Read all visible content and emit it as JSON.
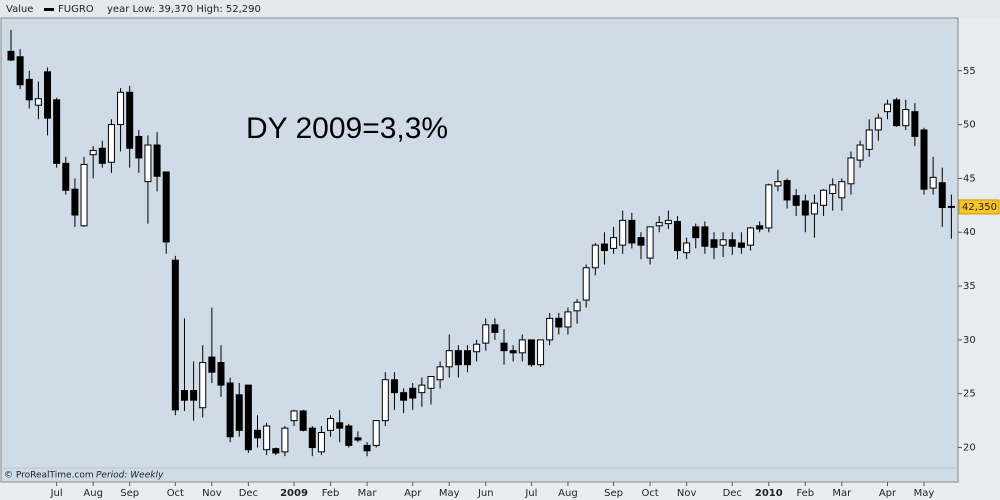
{
  "chart_data": {
    "type": "candlestick",
    "header_label": "Value",
    "stats": "year Low: 39,370 High: 52,290",
    "annotation": "DY 2009=3,3%",
    "footer_source": "© ProRealTime.com",
    "footer_period": "Period: Weekly",
    "series": [
      {
        "name": "FUGRO",
        "color": "#000000",
        "up_color": "#ffffff",
        "down_color": "#000000",
        "open": [
          56.8,
          56.3,
          54.2,
          51.8,
          54.9,
          52.3,
          46.4,
          44,
          40.6,
          47.2,
          47.8,
          46.5,
          50,
          53,
          48.9,
          44.7,
          48.1,
          45.6,
          37.4,
          25.3,
          25.3,
          23.7,
          28.4,
          27.9,
          26,
          24.9,
          25.8,
          21.6,
          19.8,
          19.9,
          19.6,
          22.5,
          23.4,
          21.8,
          19.6,
          21.6,
          22.3,
          22,
          20.9,
          20.2,
          20.2,
          22.5,
          26.3,
          25.1,
          25.5,
          25.1,
          25.5,
          26.3,
          27.5,
          29,
          29,
          28.9,
          29.7,
          31.4,
          29.7,
          29,
          28.8,
          30,
          27.7,
          30,
          32,
          31.2,
          32.7,
          33.7,
          36.7,
          38.9,
          38.5,
          38.8,
          41.1,
          39.5,
          37.6,
          40.6,
          40.8,
          41,
          38.1,
          40.5,
          40.5,
          39.3,
          38.8,
          39.3,
          39,
          38.8,
          40.6,
          40.4,
          44.3,
          44.8,
          43.4,
          42.9,
          41.7,
          42.5,
          43.6,
          43.2,
          44.5,
          46.7,
          47.7,
          49.5,
          51.2,
          52.3,
          49.9,
          51.2,
          49.5,
          44.1,
          44.6,
          42.4
        ],
        "high": [
          58.8,
          57,
          55,
          54,
          55.3,
          52.5,
          47,
          45,
          47,
          48,
          48.5,
          50.5,
          53.4,
          53.6,
          49.5,
          49,
          49.3,
          45.6,
          37.8,
          32,
          28,
          29.5,
          33,
          29.5,
          26.5,
          26,
          25.8,
          23,
          22.3,
          20,
          22,
          23.5,
          23.5,
          22,
          22,
          23,
          23.5,
          22.2,
          21.5,
          20.5,
          22.5,
          27,
          27,
          25.5,
          26,
          26.5,
          26.5,
          28,
          30.5,
          29.5,
          29.5,
          30,
          32,
          32,
          31,
          29.5,
          30.5,
          30,
          30,
          32.5,
          32.5,
          33,
          33.8,
          37,
          39,
          40,
          40.5,
          42,
          41.8,
          40,
          40.5,
          41.5,
          42,
          41.5,
          39.5,
          40.8,
          41,
          40,
          40,
          40,
          40,
          40.5,
          41,
          44.5,
          45.8,
          45,
          44,
          43.5,
          43.5,
          44,
          45,
          45,
          47.5,
          48.5,
          50.5,
          51,
          52.3,
          52.5,
          52.3,
          52,
          49.7,
          47,
          46,
          43.5
        ],
        "low": [
          55.9,
          53.3,
          51.5,
          50.5,
          49,
          46,
          43.5,
          40.5,
          40.5,
          45,
          46,
          45.5,
          47.5,
          46,
          45.5,
          40.8,
          43.8,
          38,
          23,
          23.4,
          22.5,
          22.8,
          26,
          24.7,
          20.5,
          21,
          19.5,
          20,
          19.3,
          19.3,
          19.2,
          22,
          21.5,
          19.2,
          19.3,
          21,
          20.5,
          20,
          20.5,
          19.2,
          20,
          22,
          23.5,
          23.2,
          23.5,
          23.8,
          24,
          25.5,
          26.5,
          26.5,
          27,
          28,
          29,
          30,
          27.7,
          28,
          28,
          27.5,
          27.5,
          29.5,
          30.5,
          30.5,
          31.5,
          33,
          36,
          37,
          38,
          38,
          38.5,
          37.5,
          37,
          40,
          40.3,
          37.5,
          37.5,
          38.5,
          38,
          37.5,
          37.7,
          37.9,
          38,
          38.3,
          40,
          40,
          43.8,
          42.2,
          41.5,
          40,
          39.5,
          41.5,
          42,
          42,
          43.5,
          46,
          47,
          48.5,
          50.5,
          49.8,
          49.5,
          48,
          43.5,
          43.5,
          40.5,
          39.4
        ],
        "close": [
          56,
          53.7,
          52.3,
          52.4,
          50.6,
          46.4,
          43.9,
          41.6,
          46.3,
          47.6,
          46.4,
          50,
          53,
          47.8,
          46.9,
          48.1,
          45.2,
          39.1,
          23.5,
          24.4,
          24.4,
          27.9,
          27,
          25.8,
          21,
          21.6,
          19.8,
          20.9,
          22,
          19.5,
          21.8,
          23.4,
          21.6,
          20,
          21.4,
          22.7,
          21.8,
          20.2,
          20.7,
          19.7,
          22.5,
          26.3,
          25.1,
          24.4,
          24.6,
          25.8,
          26.6,
          27.5,
          29,
          27.7,
          27.7,
          29.6,
          31.4,
          30.7,
          29,
          28.8,
          30,
          27.7,
          30,
          32,
          31.2,
          32.6,
          33.5,
          36.7,
          38.8,
          38.3,
          39.5,
          41.1,
          39,
          38.8,
          40.5,
          40.9,
          41.1,
          38.3,
          39,
          39.5,
          38.7,
          38.6,
          39.3,
          38.7,
          38.6,
          40.4,
          40.3,
          44.4,
          44.7,
          43,
          42.5,
          41.6,
          42.7,
          43.9,
          44.4,
          44.7,
          46.9,
          48.1,
          49.5,
          50.6,
          51.9,
          49.9,
          51.4,
          48.9,
          44,
          45.1,
          42.3,
          42.35
        ]
      }
    ],
    "categories": [
      null,
      null,
      null,
      null,
      null,
      "Jul",
      null,
      null,
      null,
      "Aug",
      null,
      null,
      null,
      "Sep",
      null,
      null,
      null,
      null,
      "Oct",
      null,
      null,
      null,
      "Nov",
      null,
      null,
      null,
      "Dec",
      null,
      null,
      null,
      null,
      "2009",
      null,
      null,
      null,
      "Feb",
      null,
      null,
      null,
      "Mar",
      null,
      null,
      null,
      null,
      "Apr",
      null,
      null,
      null,
      "May",
      null,
      null,
      null,
      "Jun",
      null,
      null,
      null,
      null,
      "Jul",
      null,
      null,
      null,
      "Aug",
      null,
      null,
      null,
      null,
      "Sep",
      null,
      null,
      null,
      "Oct",
      null,
      null,
      null,
      "Nov",
      null,
      null,
      null,
      null,
      "Dec",
      null,
      null,
      null,
      "2010",
      null,
      null,
      null,
      "Feb",
      null,
      null,
      null,
      "Mar",
      null,
      null,
      null,
      null,
      "Apr",
      null,
      null,
      null,
      "May",
      null,
      null,
      null
    ],
    "last_price": {
      "value": 42.35,
      "label": "42,350"
    },
    "ylim": [
      16.8,
      59.9
    ],
    "yticks": [
      20,
      25,
      30,
      35,
      40,
      45,
      50,
      55
    ],
    "background": "#cfdbe7"
  }
}
